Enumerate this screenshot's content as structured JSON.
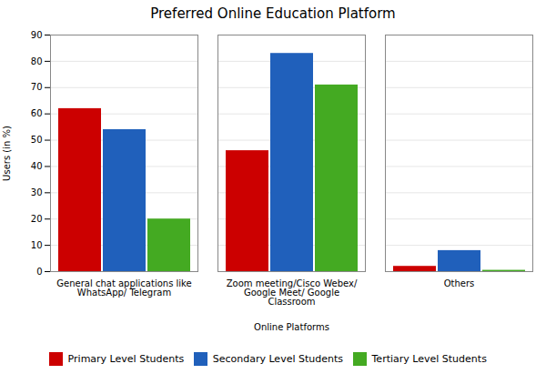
{
  "chart_data": {
    "type": "bar",
    "title": "Preferred Online Education Platform",
    "xlabel": "Online Platforms",
    "ylabel": "Users (in %)",
    "categories": [
      "General chat applications like\nWhatsApp/ Telegram",
      "Zoom meeting/Cisco Webex/\nGoogle Meet/ Google\nClassroom",
      "Others"
    ],
    "series": [
      {
        "name": "Primary Level Students",
        "color": "#cc0000",
        "values": [
          62,
          46,
          2
        ]
      },
      {
        "name": "Secondary Level Students",
        "color": "#2060bb",
        "values": [
          54,
          83,
          8
        ]
      },
      {
        "name": "Tertiary Level Students",
        "color": "#44aa22",
        "values": [
          20,
          71,
          0.5
        ]
      }
    ],
    "ylim": [
      0,
      90
    ],
    "yticks": [
      0,
      10,
      20,
      30,
      40,
      50,
      60,
      70,
      80,
      90
    ],
    "grid": true,
    "legend": "bottom"
  }
}
